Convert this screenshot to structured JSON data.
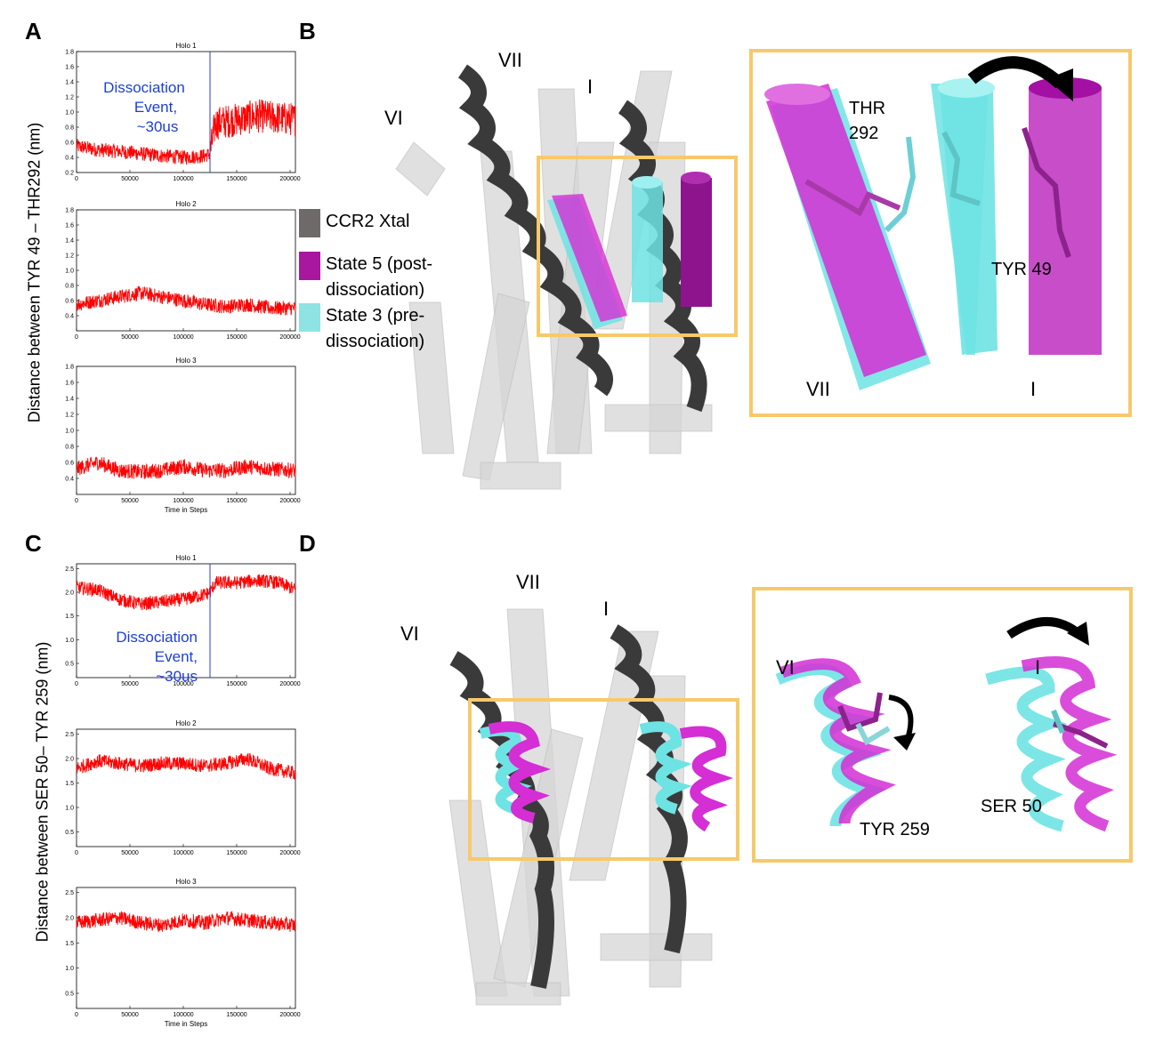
{
  "panels": {
    "a": {
      "letter": "A",
      "ylabel": "Distance between TYR 49 – THR292 (nm)",
      "annotation_lines": [
        "Dissociation",
        "Event,",
        "~30us"
      ]
    },
    "b": {
      "letter": "B"
    },
    "c": {
      "letter": "C",
      "ylabel": "Distance between SER 50– TYR 259 (nm)",
      "annotation_lines": [
        "Dissociation",
        "Event,",
        "~30us"
      ]
    },
    "d": {
      "letter": "D"
    }
  },
  "structure_labels": {
    "b_vi": "VI",
    "b_vii": "VII",
    "b_i": "I",
    "d_vi": "VI",
    "d_vii": "VII",
    "d_i": "I"
  },
  "inset_b": {
    "thr_line1": "THR",
    "thr_line2": "292",
    "tyr": "TYR 49",
    "vii": "VII",
    "i": "I"
  },
  "inset_d": {
    "vi": "VI",
    "i": "I",
    "tyr": "TYR 259",
    "ser": "SER 50"
  },
  "legend": [
    {
      "label": "CCR2 Xtal",
      "color": "#6f6a6a"
    },
    {
      "label": "State 5 (post-\ndissociation)",
      "color": "#a8179e"
    },
    {
      "label": "State 3 (pre-\ndissociation)",
      "color": "#8fe3e3"
    }
  ],
  "colors": {
    "trace": "#ff0000",
    "event_line": "#2a3ec8",
    "annotation": "#1c3fd6",
    "box": "#f7c96b",
    "magenta": "#d42ed4",
    "cyan": "#6ee3e3",
    "dark_helix": "#3a3a3a",
    "gray_helix": "#cfcfcf"
  },
  "chart_data": [
    {
      "panel": "A",
      "type": "line",
      "title": "Holo 1",
      "xlabel": "",
      "xlim": [
        0,
        205000
      ],
      "ylim": [
        0.2,
        1.8
      ],
      "xticks": [
        0,
        50000,
        100000,
        150000,
        200000
      ],
      "yticks": [
        0.2,
        0.4,
        0.6,
        0.8,
        1.0,
        1.2,
        1.4,
        1.6,
        1.8
      ],
      "event_x": 125000,
      "annotated": true,
      "series": [
        {
          "x": [
            0,
            20000,
            40000,
            60000,
            80000,
            100000,
            120000,
            125000,
            130000,
            150000,
            170000,
            190000,
            205000
          ],
          "y": [
            0.55,
            0.5,
            0.48,
            0.45,
            0.42,
            0.4,
            0.42,
            0.45,
            0.85,
            0.9,
            0.95,
            0.92,
            0.9
          ]
        }
      ]
    },
    {
      "panel": "A",
      "type": "line",
      "title": "Holo 2",
      "xlabel": "",
      "xlim": [
        0,
        205000
      ],
      "ylim": [
        0.2,
        1.8
      ],
      "xticks": [
        0,
        50000,
        100000,
        150000,
        200000
      ],
      "yticks": [
        0.4,
        0.6,
        0.8,
        1.0,
        1.2,
        1.4,
        1.6,
        1.8
      ],
      "series": [
        {
          "x": [
            0,
            20000,
            40000,
            60000,
            80000,
            100000,
            120000,
            140000,
            160000,
            180000,
            205000
          ],
          "y": [
            0.55,
            0.6,
            0.65,
            0.7,
            0.65,
            0.6,
            0.55,
            0.52,
            0.55,
            0.5,
            0.5
          ]
        }
      ]
    },
    {
      "panel": "A",
      "type": "line",
      "title": "Holo 3",
      "xlabel": "Time in Steps",
      "xlim": [
        0,
        205000
      ],
      "ylim": [
        0.2,
        1.8
      ],
      "xticks": [
        0,
        50000,
        100000,
        150000,
        200000
      ],
      "yticks": [
        0.4,
        0.6,
        0.8,
        1.0,
        1.2,
        1.4,
        1.6,
        1.8
      ],
      "series": [
        {
          "x": [
            0,
            20000,
            40000,
            60000,
            80000,
            100000,
            120000,
            140000,
            160000,
            180000,
            205000
          ],
          "y": [
            0.52,
            0.6,
            0.5,
            0.48,
            0.5,
            0.55,
            0.5,
            0.5,
            0.55,
            0.52,
            0.5
          ]
        }
      ]
    },
    {
      "panel": "C",
      "type": "line",
      "title": "Holo 1",
      "xlabel": "",
      "xlim": [
        0,
        205000
      ],
      "ylim": [
        0.2,
        2.6
      ],
      "xticks": [
        0,
        50000,
        100000,
        150000,
        200000
      ],
      "yticks": [
        0.5,
        1.0,
        1.5,
        2.0,
        2.5
      ],
      "event_x": 125000,
      "annotated": true,
      "series": [
        {
          "x": [
            0,
            20000,
            40000,
            60000,
            80000,
            100000,
            120000,
            125000,
            130000,
            150000,
            170000,
            190000,
            205000
          ],
          "y": [
            2.1,
            2.05,
            1.85,
            1.75,
            1.8,
            1.85,
            1.95,
            2.0,
            2.2,
            2.2,
            2.25,
            2.2,
            2.05
          ]
        }
      ]
    },
    {
      "panel": "C",
      "type": "line",
      "title": "Holo 2",
      "xlabel": "",
      "xlim": [
        0,
        205000
      ],
      "ylim": [
        0.2,
        2.6
      ],
      "xticks": [
        0,
        50000,
        100000,
        150000,
        200000
      ],
      "yticks": [
        0.5,
        1.0,
        1.5,
        2.0,
        2.5
      ],
      "series": [
        {
          "x": [
            0,
            20000,
            40000,
            60000,
            80000,
            100000,
            120000,
            140000,
            160000,
            180000,
            205000
          ],
          "y": [
            1.8,
            1.95,
            1.9,
            1.85,
            1.9,
            1.9,
            1.85,
            1.9,
            2.0,
            1.8,
            1.7
          ]
        }
      ]
    },
    {
      "panel": "C",
      "type": "line",
      "title": "Holo 3",
      "xlabel": "Time in Steps",
      "xlim": [
        0,
        205000
      ],
      "ylim": [
        0.2,
        2.6
      ],
      "xticks": [
        0,
        50000,
        100000,
        150000,
        200000
      ],
      "yticks": [
        0.5,
        1.0,
        1.5,
        2.0,
        2.5
      ],
      "series": [
        {
          "x": [
            0,
            20000,
            40000,
            60000,
            80000,
            100000,
            120000,
            140000,
            160000,
            180000,
            205000
          ],
          "y": [
            1.9,
            1.95,
            2.0,
            1.9,
            1.85,
            1.95,
            1.9,
            2.0,
            1.95,
            1.9,
            1.85
          ]
        }
      ]
    }
  ]
}
